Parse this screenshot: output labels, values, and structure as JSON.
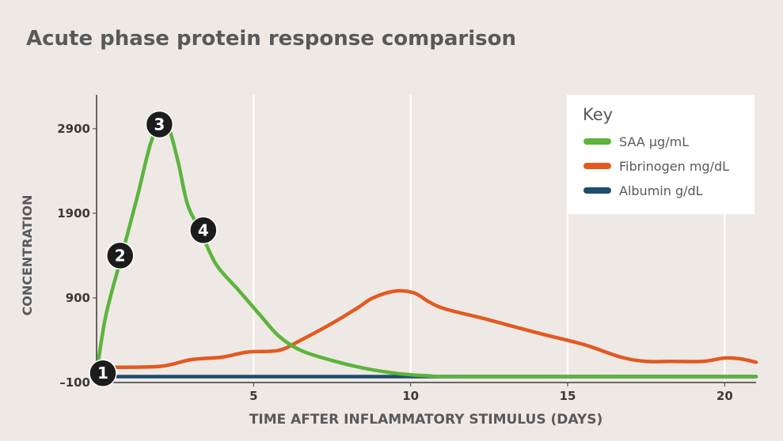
{
  "chart_data": {
    "type": "line",
    "title": "Acute phase protein response comparison",
    "xlabel": "TIME AFTER INFLAMMATORY STIMULUS (DAYS)",
    "ylabel": "CONCENTRATION",
    "xlim": [
      0,
      21
    ],
    "ylim": [
      -100,
      3300
    ],
    "x_ticks": [
      "5",
      "10",
      "15",
      "20"
    ],
    "y_ticks": [
      "2900",
      "1900",
      "900",
      "–100"
    ],
    "grid": "vertical",
    "legend": {
      "title": "Key",
      "placement": "top-right"
    },
    "series": [
      {
        "name": "SAA µg/mL",
        "color": "#5cb43c",
        "points": [
          [
            0,
            10
          ],
          [
            0.3,
            700
          ],
          [
            0.8,
            1400
          ],
          [
            1.3,
            2100
          ],
          [
            1.7,
            2700
          ],
          [
            2.0,
            2950
          ],
          [
            2.3,
            2900
          ],
          [
            2.6,
            2500
          ],
          [
            2.9,
            2000
          ],
          [
            3.3,
            1700
          ],
          [
            3.8,
            1300
          ],
          [
            4.5,
            1000
          ],
          [
            5.2,
            700
          ],
          [
            5.8,
            450
          ],
          [
            6.5,
            280
          ],
          [
            7.5,
            160
          ],
          [
            8.5,
            70
          ],
          [
            9.5,
            10
          ],
          [
            10.5,
            -20
          ],
          [
            12,
            -30
          ],
          [
            21,
            -30
          ]
        ]
      },
      {
        "name": "Fibrinogen mg/dL",
        "color": "#e25a1f",
        "points": [
          [
            0.2,
            80
          ],
          [
            2.0,
            90
          ],
          [
            3.0,
            170
          ],
          [
            4.0,
            200
          ],
          [
            4.8,
            260
          ],
          [
            5.8,
            280
          ],
          [
            6.5,
            400
          ],
          [
            7.5,
            600
          ],
          [
            8.3,
            780
          ],
          [
            8.8,
            900
          ],
          [
            9.5,
            980
          ],
          [
            10.1,
            960
          ],
          [
            10.6,
            850
          ],
          [
            11.1,
            770
          ],
          [
            12.5,
            640
          ],
          [
            14,
            490
          ],
          [
            15.5,
            350
          ],
          [
            16.7,
            200
          ],
          [
            17.5,
            150
          ],
          [
            18.3,
            150
          ],
          [
            19.3,
            150
          ],
          [
            20,
            190
          ],
          [
            20.5,
            180
          ],
          [
            21,
            140
          ]
        ]
      },
      {
        "name": "Albumin g/dL",
        "color": "#1e4d6b",
        "points": [
          [
            0,
            -30
          ],
          [
            21,
            -30
          ]
        ]
      }
    ],
    "annotations": [
      {
        "label": "1",
        "x": 0.2,
        "y": 10
      },
      {
        "label": "2",
        "x": 0.75,
        "y": 1400
      },
      {
        "label": "3",
        "x": 2.0,
        "y": 2950
      },
      {
        "label": "4",
        "x": 3.4,
        "y": 1700
      }
    ]
  }
}
